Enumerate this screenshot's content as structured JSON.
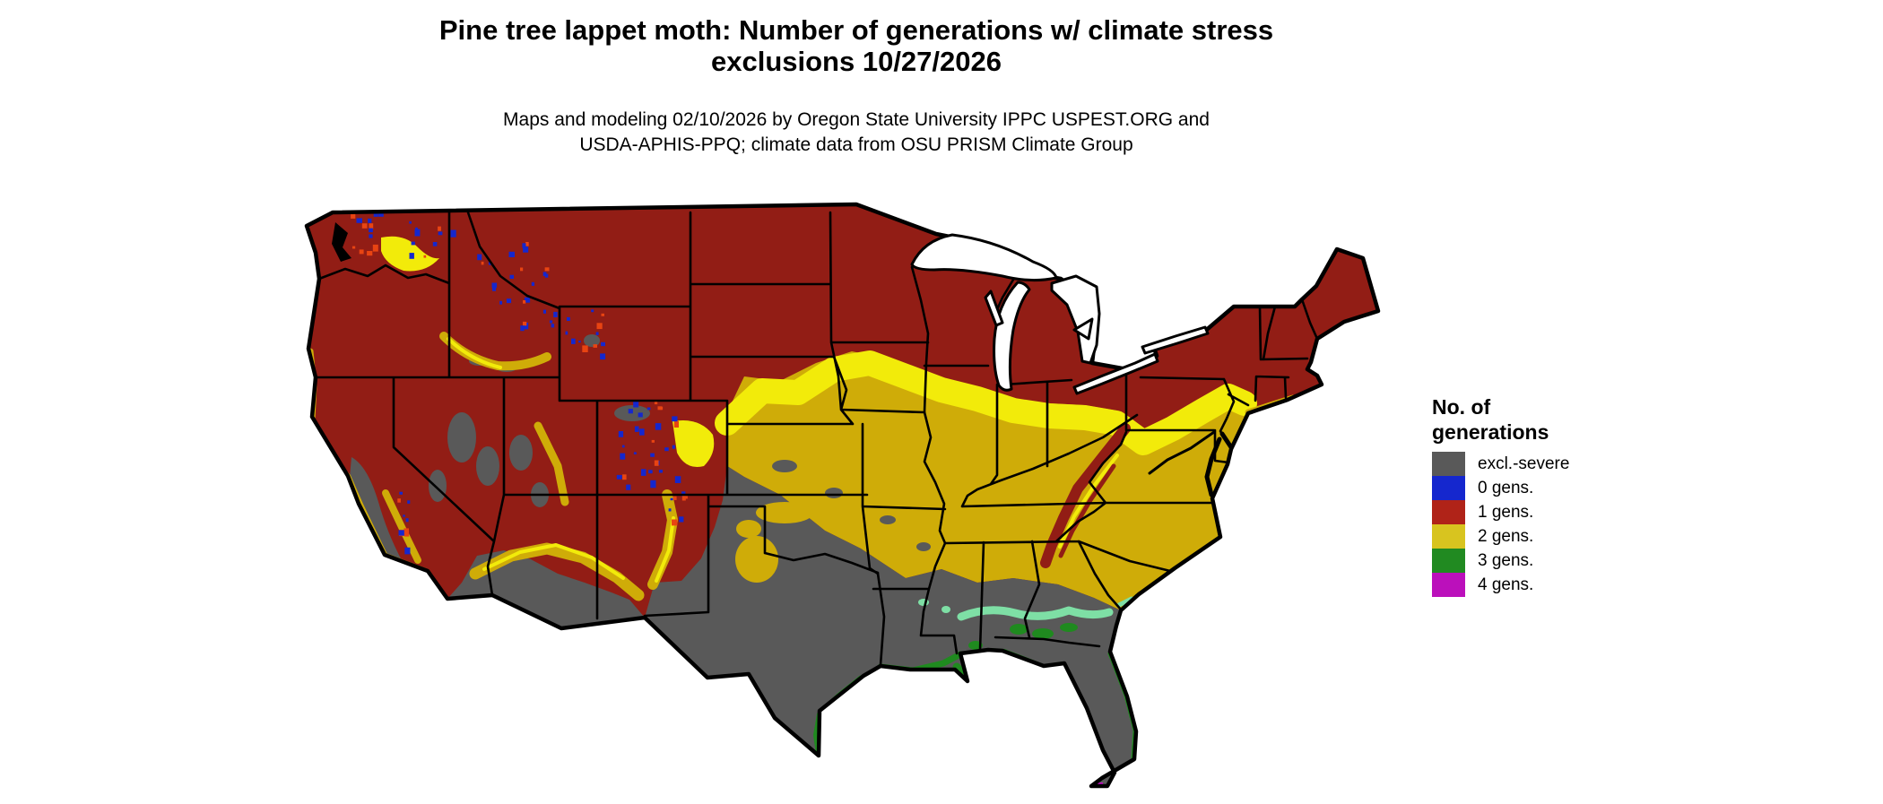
{
  "header": {
    "title_line1": "Pine tree lappet moth: Number of generations w/ climate stress",
    "title_line2": "exclusions 10/27/2026",
    "subtitle_line1": "Maps and modeling 02/10/2026 by Oregon State University IPPC USPEST.ORG and",
    "subtitle_line2": "USDA-APHIS-PPQ; climate data from OSU PRISM Climate Group"
  },
  "legend": {
    "title_line1": "No. of",
    "title_line2": "generations",
    "items": [
      {
        "label": "excl.-severe",
        "color": "#595959"
      },
      {
        "label": "0 gens.",
        "color": "#1527CE"
      },
      {
        "label": "1 gens.",
        "color": "#B02318"
      },
      {
        "label": "2 gens.",
        "color": "#D8C41F"
      },
      {
        "label": "3 gens.",
        "color": "#218A21"
      },
      {
        "label": "4 gens.",
        "color": "#BB10BB"
      }
    ]
  },
  "map": {
    "region": "Continental United States",
    "fill_colors": {
      "excl_severe_gray": "#595959",
      "gens0_blue": "#1527CE",
      "gens1_red": "#921D15",
      "gens2_gold": "#CFAC08",
      "transition_yellow": "#F2EB0A",
      "gens3_green": "#1F8A1F",
      "coastal_light_green": "#7EDFA5",
      "gens4_magenta": "#BF10BF",
      "mountain_orange": "#E84412",
      "state_border": "#000000",
      "water": "#FFFFFF"
    }
  }
}
